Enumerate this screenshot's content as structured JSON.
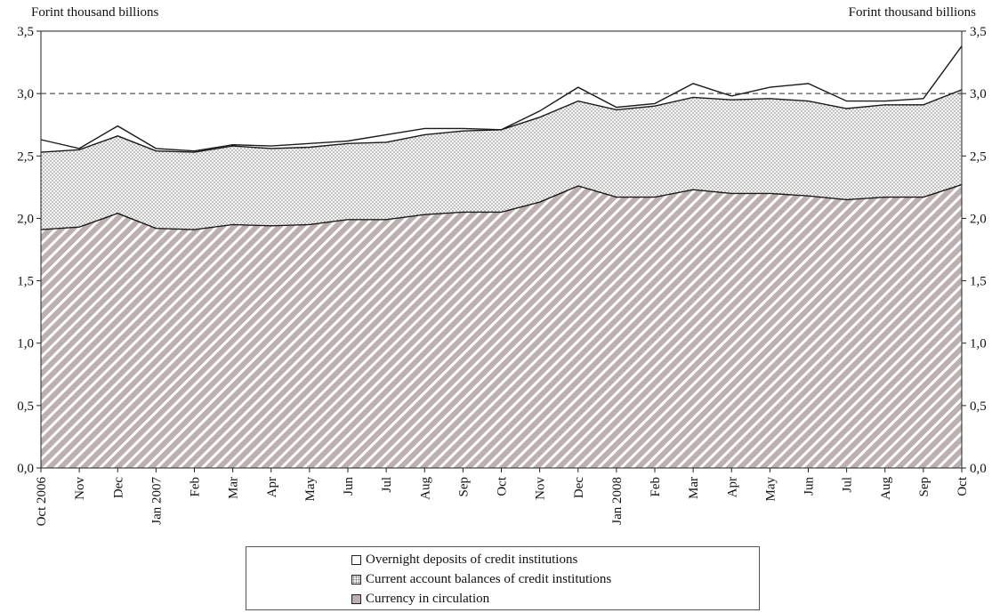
{
  "unit_label_left": "Forint thousand billions",
  "unit_label_right": "Forint thousand billions",
  "chart_data": {
    "type": "area",
    "stacked": true,
    "title": "",
    "xlabel": "",
    "ylabel_left": "Forint thousand billions",
    "ylabel_right": "Forint thousand billions",
    "ylim": [
      0,
      3.5
    ],
    "y_ticks": [
      "0,0",
      "0,5",
      "1,0",
      "1,5",
      "2,0",
      "2,5",
      "3,0",
      "3,5"
    ],
    "categories": [
      "Oct 2006",
      "Nov",
      "Dec",
      "Jan 2007",
      "Feb",
      "Mar",
      "Apr",
      "May",
      "Jun",
      "Jul",
      "Aug",
      "Sep",
      "Oct",
      "Nov",
      "Dec",
      "Jan 2008",
      "Feb",
      "Mar",
      "Apr",
      "May",
      "Jun",
      "Jul",
      "Aug",
      "Sep",
      "Oct"
    ],
    "series": [
      {
        "name": "Currency in circulation",
        "values": [
          1.91,
          1.93,
          2.04,
          1.92,
          1.91,
          1.95,
          1.94,
          1.95,
          1.99,
          1.99,
          2.03,
          2.05,
          2.05,
          2.13,
          2.26,
          2.17,
          2.17,
          2.23,
          2.2,
          2.2,
          2.18,
          2.15,
          2.17,
          2.17,
          2.27
        ]
      },
      {
        "name": "Current account balances of credit institutions",
        "values": [
          0.62,
          0.62,
          0.62,
          0.62,
          0.62,
          0.63,
          0.62,
          0.62,
          0.61,
          0.62,
          0.64,
          0.65,
          0.66,
          0.68,
          0.68,
          0.7,
          0.73,
          0.74,
          0.75,
          0.76,
          0.76,
          0.73,
          0.74,
          0.74,
          0.76
        ]
      },
      {
        "name": "Overnight deposits of credit institutions",
        "values": [
          0.1,
          0.01,
          0.08,
          0.02,
          0.01,
          0.01,
          0.02,
          0.03,
          0.02,
          0.06,
          0.05,
          0.02,
          0.0,
          0.05,
          0.11,
          0.02,
          0.02,
          0.11,
          0.03,
          0.09,
          0.14,
          0.06,
          0.03,
          0.05,
          0.35
        ]
      }
    ],
    "reference_line": {
      "value": 3.0,
      "style": "dashed"
    },
    "legend_position": "bottom-center",
    "grid": false
  },
  "legend": {
    "items": [
      {
        "label": "Overnight deposits of credit institutions",
        "swatch": "white"
      },
      {
        "label": "Current account balances of credit institutions",
        "swatch": "dotted"
      },
      {
        "label": "Currency in circulation",
        "swatch": "hatched"
      }
    ]
  },
  "colors": {
    "currency_fill": "#bcb0b0",
    "currency_hatch": "#ffffff",
    "current_fill": "#f3f3f3",
    "current_dots": "#7a7a7a",
    "overnight_fill": "#ffffff",
    "line": "#1a1a1a",
    "axis": "#222222",
    "reference_line": "#555555"
  }
}
